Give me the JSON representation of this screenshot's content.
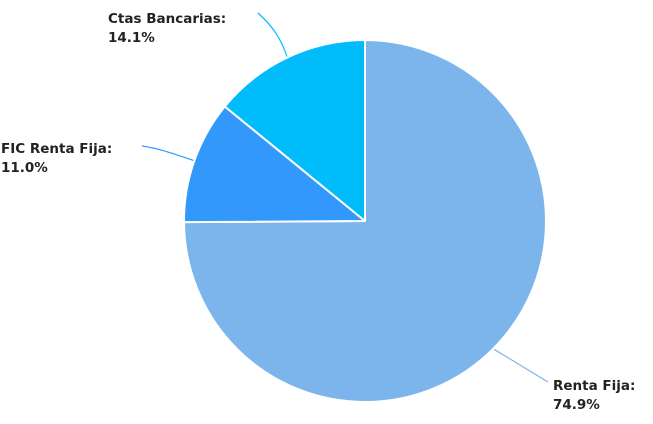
{
  "chart_data": {
    "type": "pie",
    "title": "",
    "categories": [
      "Renta Fija",
      "FIC Renta Fija",
      "Ctas Bancarias"
    ],
    "values": [
      74.9,
      11.0,
      14.1
    ],
    "unit": "%",
    "start": "12 o'clock",
    "direction": "clockwise",
    "legend": "none",
    "slices": [
      {
        "name": "Renta Fija",
        "label": "Renta Fija:",
        "value": 74.9,
        "value_label": "74.9%",
        "color": "#7cb5ec"
      },
      {
        "name": "FIC Renta Fija",
        "label": "FIC Renta Fija:",
        "value": 11.0,
        "value_label": "11.0%",
        "color": "#3398fb"
      },
      {
        "name": "Ctas Bancarias",
        "label": "Ctas Bancarias:",
        "value": 14.1,
        "value_label": "14.1%",
        "color": "#01bcfa"
      }
    ]
  }
}
